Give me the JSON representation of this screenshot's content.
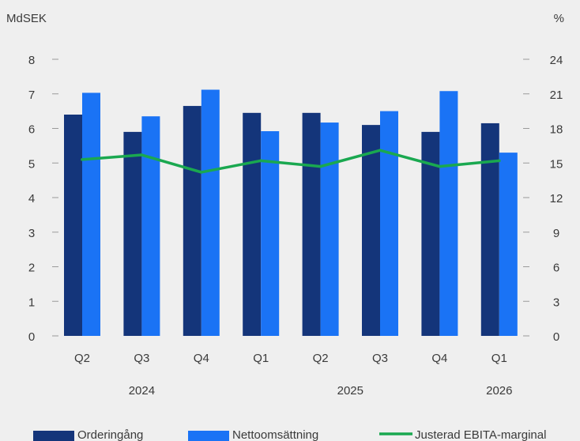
{
  "chart_data": {
    "type": "bar",
    "title": "",
    "y_left_label": "MdSEK",
    "y_right_label": "%",
    "categories": [
      "Q2",
      "Q3",
      "Q4",
      "Q1",
      "Q2",
      "Q3",
      "Q4",
      "Q1"
    ],
    "years": [
      {
        "label": "2024",
        "at_category": 1
      },
      {
        "label": "2025",
        "at_category": 4.5
      },
      {
        "label": "2026",
        "at_category": 7
      }
    ],
    "y_left": {
      "min": 0,
      "max": 8,
      "ticks": [
        0,
        1,
        2,
        3,
        4,
        5,
        6,
        7,
        8
      ]
    },
    "y_right": {
      "min": 0,
      "max": 24,
      "ticks": [
        0,
        3,
        6,
        9,
        12,
        15,
        18,
        21,
        24
      ]
    },
    "series": [
      {
        "name": "Orderingång",
        "type": "bar",
        "axis": "left",
        "color": "#14357a",
        "values": [
          6.4,
          5.9,
          6.65,
          6.45,
          6.45,
          6.1,
          5.9,
          6.15
        ]
      },
      {
        "name": "Nettoomsättning",
        "type": "bar",
        "axis": "left",
        "color": "#1a73f5",
        "values": [
          7.03,
          6.35,
          7.12,
          5.92,
          6.17,
          6.5,
          7.08,
          5.3
        ]
      },
      {
        "name": "Justerad EBITA-marginal",
        "type": "line",
        "axis": "right",
        "color": "#1aa850",
        "values": [
          15.3,
          15.7,
          14.2,
          15.2,
          14.7,
          16.1,
          14.7,
          15.2
        ]
      }
    ],
    "grid": false,
    "legend_position": "bottom"
  }
}
